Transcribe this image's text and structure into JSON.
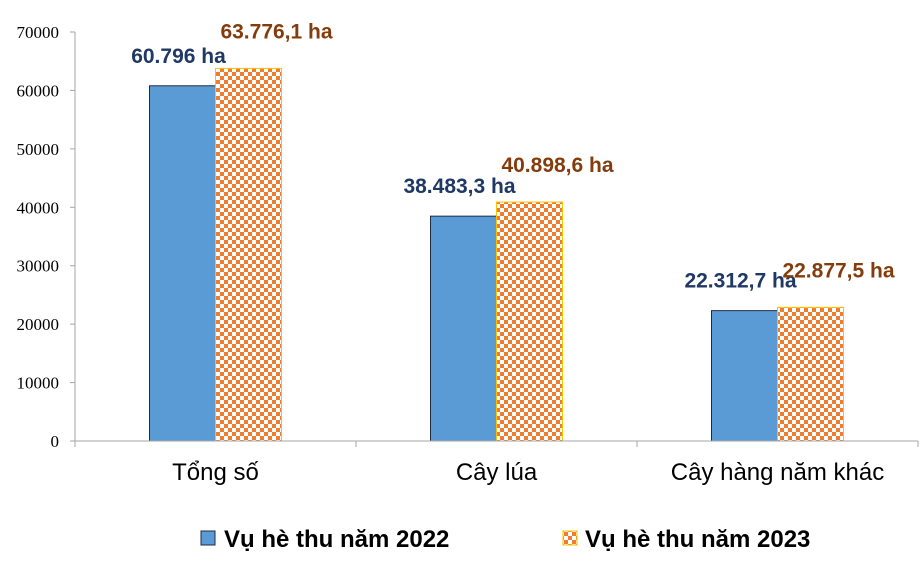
{
  "chart_data": {
    "type": "bar",
    "categories": [
      "Tổng số",
      "Cây lúa",
      "Cây hàng năm khác"
    ],
    "series": [
      {
        "name": "Vụ hè thu năm 2022",
        "values": [
          60796,
          38483.3,
          22312.7
        ],
        "labels": [
          "60.796 ha",
          "38.483,3 ha",
          "22.312,7 ha"
        ],
        "color": "#5B9BD5",
        "label_color": "#1F3864",
        "pattern": "solid"
      },
      {
        "name": "Vụ hè thu năm 2023",
        "values": [
          63776.1,
          40898.6,
          22877.5
        ],
        "labels": [
          "63.776,1 ha",
          "40.898,6 ha",
          "22.877,5 ha"
        ],
        "color": "#ED7D31",
        "label_color": "#843C0C",
        "pattern": "checkered"
      }
    ],
    "ylim": [
      0,
      70000
    ],
    "yticks": [
      "0",
      "10000",
      "20000",
      "30000",
      "40000",
      "50000",
      "60000",
      "70000"
    ],
    "grid": false,
    "legend_position": "bottom"
  }
}
